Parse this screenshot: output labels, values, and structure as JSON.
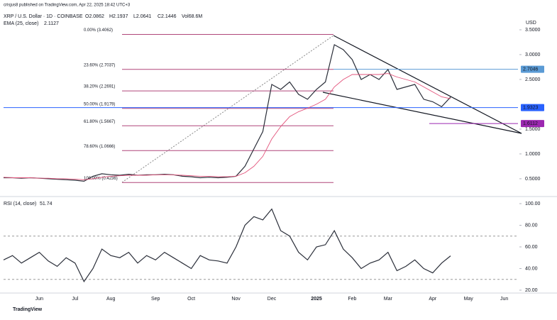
{
  "header": {
    "published": "crisjus8 published on TradingView.com, Apr 22, 2025 18:42 UTC+3",
    "last_bar": [
      "O2.0862",
      "H2.1937",
      "L2.0641",
      "C2.1446",
      "Vol68.6M"
    ],
    "currency": "USD",
    "brand": "TradingView"
  },
  "chart_data": [
    {
      "type": "line",
      "series": [
        {
          "name": "XRP / U.S. Dollar · 1D · COINBASE",
          "color": "#2a2e39",
          "values": [
            0.52,
            0.52,
            0.51,
            0.52,
            0.51,
            0.5,
            0.49,
            0.48,
            0.47,
            0.45,
            0.55,
            0.6,
            0.58,
            0.57,
            0.59,
            0.57,
            0.58,
            0.58,
            0.59,
            0.58,
            0.55,
            0.54,
            0.52,
            0.53,
            0.52,
            0.53,
            0.55,
            0.75,
            1.1,
            1.45,
            2.4,
            2.3,
            2.45,
            2.2,
            2.1,
            2.3,
            2.45,
            3.2,
            3.1,
            2.9,
            2.5,
            2.6,
            2.5,
            2.7,
            2.3,
            2.35,
            2.4,
            2.1,
            2.05,
            1.95,
            2.1446,
            null,
            null,
            null,
            null,
            null,
            null,
            null
          ]
        },
        {
          "name": "EMA (25, close)",
          "color": "#e3537b",
          "values": [
            0.53,
            0.52,
            0.52,
            0.52,
            0.51,
            0.51,
            0.5,
            0.5,
            0.49,
            0.48,
            0.5,
            0.53,
            0.55,
            0.56,
            0.57,
            0.57,
            0.57,
            0.58,
            0.58,
            0.58,
            0.57,
            0.56,
            0.55,
            0.55,
            0.54,
            0.54,
            0.55,
            0.62,
            0.75,
            0.95,
            1.3,
            1.55,
            1.75,
            1.85,
            1.92,
            2.0,
            2.1,
            2.35,
            2.5,
            2.6,
            2.6,
            2.6,
            2.6,
            2.62,
            2.55,
            2.5,
            2.45,
            2.35,
            2.25,
            2.15,
            2.1127,
            null,
            null,
            null,
            null,
            null,
            null,
            null
          ]
        }
      ],
      "ylim": [
        0.17,
        4.1
      ],
      "yticks": [
        {
          "value": 0.5,
          "label": "0.5000"
        },
        {
          "value": 1,
          "label": "1.0000"
        },
        {
          "value": 1.5,
          "label": "1.5000"
        },
        {
          "value": 2.5,
          "label": "2.5000"
        },
        {
          "value": 3,
          "label": "3.0000"
        },
        {
          "value": 3.5,
          "label": "3.5000"
        }
      ],
      "fib_levels": [
        {
          "value": 3.4062,
          "label": "0.00% (3.4062)"
        },
        {
          "value": 2.7037,
          "label": "23.60% (2.7037)"
        },
        {
          "value": 2.2691,
          "label": "38.20% (2.2691)"
        },
        {
          "value": 1.9179,
          "label": "50.00% (1.9179)"
        },
        {
          "value": 1.5667,
          "label": "61.80% (1.5667)"
        },
        {
          "value": 1.0666,
          "label": "78.60% (1.0666)"
        },
        {
          "value": 0.4236,
          "label": "100.00% (0.4236)"
        }
      ],
      "fib_color": "#b0477a",
      "price_lines": [
        {
          "value": 2.7046,
          "color": "#5b9bd5"
        },
        {
          "value": 1.9323,
          "color": "#2962ff"
        },
        {
          "value": 1.6112,
          "color": "#9c27b0"
        }
      ]
    },
    {
      "type": "line",
      "series": [
        {
          "name": "RSI (14, close)",
          "color": "#2a2e39",
          "values": [
            48,
            52,
            45,
            50,
            55,
            47,
            42,
            50,
            45,
            28,
            40,
            58,
            52,
            50,
            55,
            45,
            52,
            48,
            55,
            50,
            45,
            40,
            52,
            48,
            47,
            45,
            60,
            80,
            88,
            85,
            95,
            75,
            70,
            55,
            48,
            60,
            62,
            75,
            58,
            50,
            40,
            45,
            48,
            55,
            38,
            42,
            48,
            40,
            36,
            45,
            51.74,
            null,
            null,
            null,
            null,
            null,
            null,
            null
          ]
        }
      ],
      "categories": [
        null,
        null,
        null,
        null,
        "Jun",
        null,
        null,
        null,
        "Jul",
        null,
        null,
        null,
        "Aug",
        null,
        null,
        null,
        null,
        "Sep",
        null,
        null,
        null,
        "Oct",
        null,
        null,
        null,
        null,
        "Nov",
        null,
        null,
        null,
        "Dec",
        null,
        null,
        null,
        null,
        "2025",
        null,
        null,
        null,
        "Feb",
        null,
        null,
        null,
        "Mar",
        null,
        null,
        null,
        null,
        "Apr",
        null,
        null,
        null,
        "May",
        null,
        null,
        null,
        "Jun",
        null
      ],
      "ylim": [
        18,
        104.6
      ],
      "yticks": [
        {
          "value": 20,
          "label": "20.00"
        },
        {
          "value": 40,
          "label": "40.00"
        },
        {
          "value": 60,
          "label": "60.00"
        },
        {
          "value": 80,
          "label": "80.00"
        },
        {
          "value": 100,
          "label": "100.00"
        }
      ],
      "bands": [
        30,
        70
      ]
    }
  ]
}
